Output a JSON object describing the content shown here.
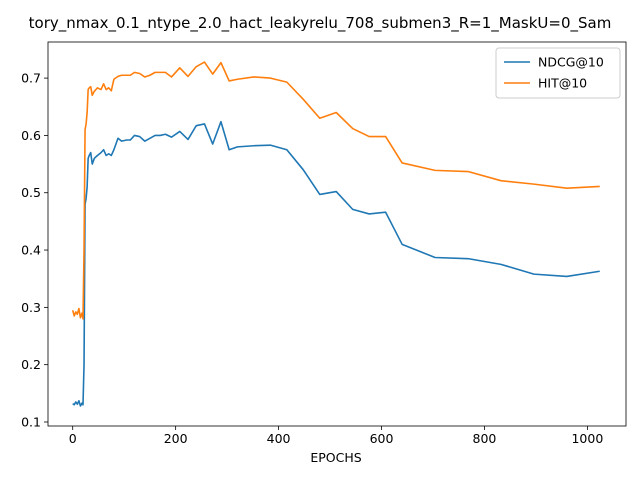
{
  "chart_data": {
    "type": "line",
    "title": "tory_nmax_0.1_ntype_2.0_hact_leakyrelu_708_submen3_R=1_MaskU=0_Sam",
    "xlabel": "EPOCHS",
    "ylabel": "",
    "xlim": [
      -48,
      1075
    ],
    "ylim": [
      0.093,
      0.763
    ],
    "xticks": [
      0,
      200,
      400,
      600,
      800,
      1000
    ],
    "yticks": [
      0.1,
      0.2,
      0.3,
      0.4,
      0.5,
      0.6,
      0.7
    ],
    "grid": false,
    "legend_position": "top-right",
    "series": [
      {
        "name": "NDCG@10",
        "color": "#1f77b4",
        "x": [
          0,
          3,
          6,
          9,
          12,
          15,
          18,
          20,
          22,
          24,
          26,
          28,
          30,
          32,
          35,
          38,
          42,
          48,
          55,
          60,
          65,
          70,
          75,
          80,
          88,
          95,
          105,
          112,
          120,
          130,
          140,
          150,
          160,
          170,
          180,
          192,
          208,
          224,
          240,
          256,
          272,
          288,
          304,
          320,
          352,
          384,
          416,
          448,
          480,
          512,
          544,
          576,
          608,
          640,
          704,
          768,
          832,
          896,
          960,
          1024
        ],
        "y": [
          0.132,
          0.13,
          0.135,
          0.131,
          0.137,
          0.128,
          0.133,
          0.13,
          0.2,
          0.48,
          0.49,
          0.51,
          0.56,
          0.565,
          0.57,
          0.55,
          0.56,
          0.565,
          0.57,
          0.575,
          0.565,
          0.568,
          0.565,
          0.575,
          0.595,
          0.59,
          0.592,
          0.592,
          0.6,
          0.598,
          0.59,
          0.595,
          0.6,
          0.6,
          0.602,
          0.597,
          0.607,
          0.593,
          0.617,
          0.62,
          0.585,
          0.624,
          0.575,
          0.58,
          0.582,
          0.583,
          0.575,
          0.54,
          0.497,
          0.502,
          0.471,
          0.463,
          0.466,
          0.41,
          0.387,
          0.385,
          0.375,
          0.358,
          0.354,
          0.363
        ]
      },
      {
        "name": "HIT@10",
        "color": "#ff7f0e",
        "x": [
          0,
          3,
          6,
          9,
          12,
          15,
          18,
          20,
          22,
          24,
          26,
          28,
          30,
          32,
          35,
          38,
          42,
          48,
          55,
          60,
          65,
          70,
          75,
          80,
          88,
          95,
          105,
          112,
          120,
          130,
          140,
          150,
          160,
          170,
          180,
          192,
          208,
          224,
          240,
          256,
          272,
          288,
          304,
          320,
          352,
          384,
          416,
          448,
          480,
          512,
          544,
          576,
          608,
          640,
          704,
          768,
          832,
          896,
          960,
          1024
        ],
        "y": [
          0.295,
          0.285,
          0.292,
          0.288,
          0.298,
          0.282,
          0.29,
          0.28,
          0.4,
          0.61,
          0.62,
          0.64,
          0.68,
          0.683,
          0.685,
          0.67,
          0.677,
          0.683,
          0.68,
          0.69,
          0.68,
          0.683,
          0.678,
          0.698,
          0.703,
          0.705,
          0.705,
          0.705,
          0.71,
          0.708,
          0.702,
          0.705,
          0.71,
          0.71,
          0.71,
          0.702,
          0.718,
          0.703,
          0.72,
          0.728,
          0.707,
          0.727,
          0.695,
          0.698,
          0.702,
          0.7,
          0.693,
          0.663,
          0.63,
          0.64,
          0.612,
          0.598,
          0.598,
          0.552,
          0.539,
          0.537,
          0.521,
          0.515,
          0.508,
          0.511
        ]
      }
    ]
  }
}
